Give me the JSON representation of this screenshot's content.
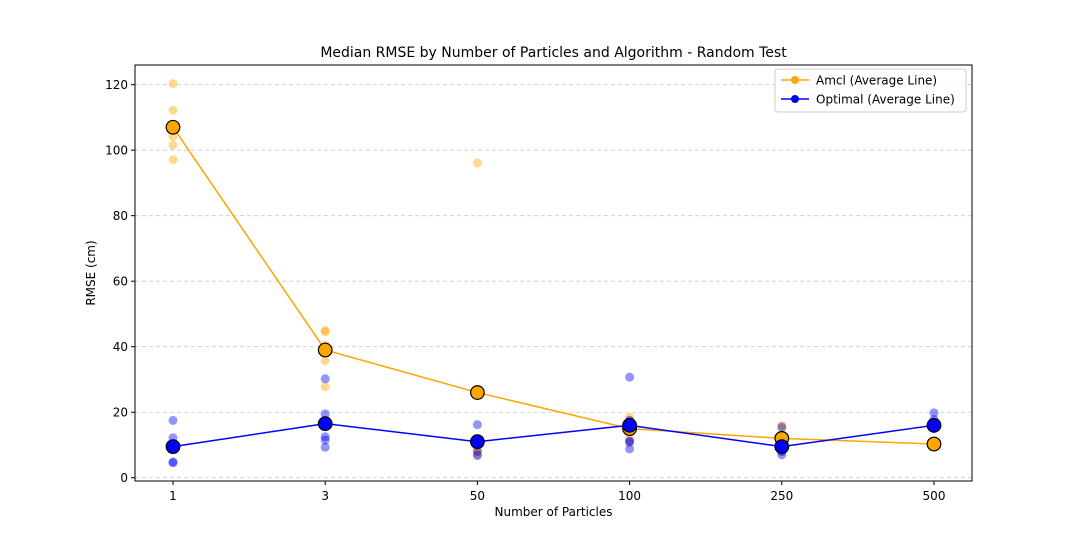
{
  "chart_data": {
    "type": "scatter",
    "title": "Median RMSE by Number of Particles and Algorithm - Random Test",
    "xlabel": "Number of Particles",
    "ylabel": "RMSE (cm)",
    "categories": [
      "1",
      "3",
      "50",
      "100",
      "250",
      "500"
    ],
    "ylim": [
      -1,
      126
    ],
    "yticks": [
      0,
      20,
      40,
      60,
      80,
      100,
      120
    ],
    "grid": "horizontal-dashed",
    "legend_position": "top-right",
    "series": [
      {
        "name": "Amcl (Average Line)",
        "color": "#ffa500",
        "average": [
          107,
          39,
          26,
          15,
          12,
          10.3
        ],
        "points": [
          [
            120.3,
            112.2,
            104.2,
            101.5,
            97.1
          ],
          [
            45,
            44.5,
            40.5,
            35.8,
            27.8
          ],
          [
            96.1,
            9.5,
            8.5,
            7.5,
            7
          ],
          [
            18.5,
            17.5,
            14.5,
            12,
            10.5
          ],
          [
            16,
            15,
            12.5,
            9.5,
            8
          ],
          [
            10.5,
            10,
            9.8,
            9.5,
            9.2
          ]
        ]
      },
      {
        "name": "Optimal (Average Line)",
        "color": "#0000ff",
        "average": [
          9.5,
          16.5,
          11,
          16,
          9.5,
          16
        ],
        "points": [
          [
            17.5,
            12.2,
            9.5,
            4.8,
            4.6
          ],
          [
            30.2,
            19.5,
            12.5,
            11.5,
            9.3
          ],
          [
            16.2,
            11.5,
            10.5,
            8,
            6.8
          ],
          [
            30.7,
            17.5,
            11.2,
            11,
            8.8
          ],
          [
            15.5,
            9.8,
            9,
            8,
            7
          ],
          [
            19.8,
            17.8,
            16.5,
            15.5,
            15
          ]
        ]
      }
    ]
  }
}
